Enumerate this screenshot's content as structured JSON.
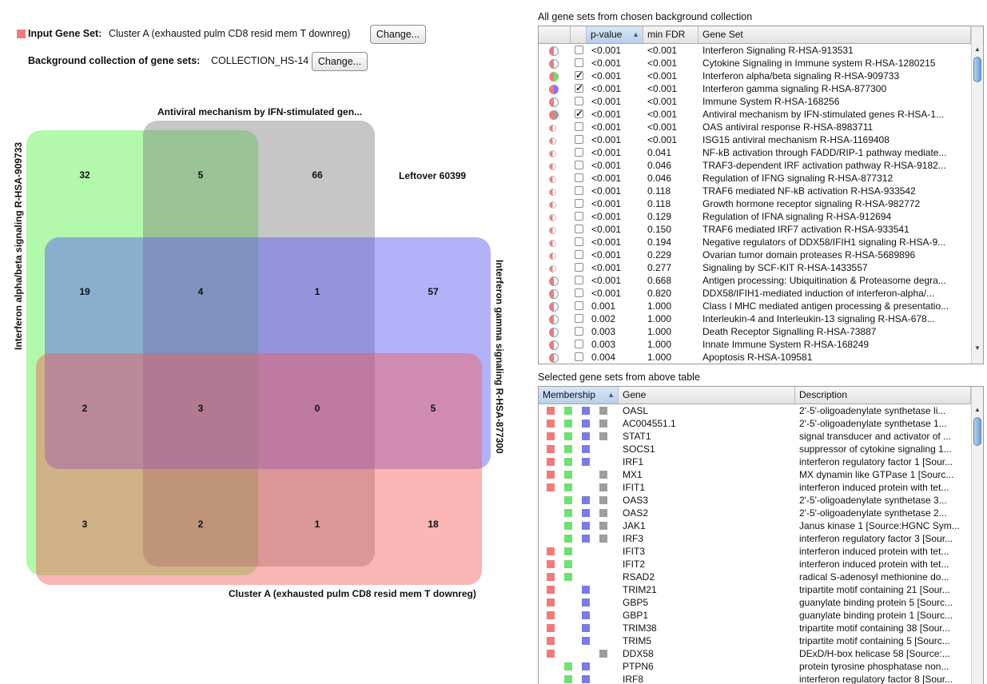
{
  "input": {
    "label": "Input Gene Set:",
    "value": "Cluster A (exhausted pulm CD8 resid mem T downreg)",
    "change_label": "Change..."
  },
  "background": {
    "label": "Background collection of gene sets:",
    "value": "COLLECTION_HS-14",
    "change_label": "Change..."
  },
  "colors": {
    "input_red": "#f07b7b",
    "green": "#70e070",
    "blue": "#7a7ae8",
    "grey": "#9e9e9e",
    "accent": "#5d87bd"
  },
  "venn": {
    "set_top_label": "Antiviral mechanism by IFN-stimulated gen...",
    "set_left_label": "Interferon alpha/beta signaling R-HSA-909733",
    "set_right_label": "Interferon gamma signaling R-HSA-877300",
    "set_bottom_label": "Cluster A (exhausted pulm CD8 resid mem T downreg)",
    "leftover": "Leftover 60399",
    "counts": [
      [
        "32",
        "5",
        "66"
      ],
      [
        "19",
        "4",
        "1",
        "57"
      ],
      [
        "2",
        "3",
        "0",
        "5"
      ],
      [
        "3",
        "2",
        "1",
        "18"
      ]
    ]
  },
  "gene_sets_panel": {
    "title": "All gene sets from chosen background collection",
    "headers": {
      "pvalue": "p-value",
      "fdr": "min FDR",
      "geneset": "Gene Set"
    },
    "rows": [
      {
        "dot": "red-white",
        "checked": false,
        "p": "<0.001",
        "fdr": "<0.001",
        "name": "Interferon Signaling R-HSA-913531"
      },
      {
        "dot": "red-white",
        "checked": false,
        "p": "<0.001",
        "fdr": "<0.001",
        "name": "Cytokine Signaling in Immune system R-HSA-1280215"
      },
      {
        "dot": "red-green",
        "checked": true,
        "p": "<0.001",
        "fdr": "<0.001",
        "name": "Interferon alpha/beta signaling R-HSA-909733"
      },
      {
        "dot": "red-blue",
        "checked": true,
        "p": "<0.001",
        "fdr": "<0.001",
        "name": "Interferon gamma signaling R-HSA-877300"
      },
      {
        "dot": "red-white",
        "checked": false,
        "p": "<0.001",
        "fdr": "<0.001",
        "name": "Immune System R-HSA-168256"
      },
      {
        "dot": "red-grey",
        "checked": true,
        "p": "<0.001",
        "fdr": "<0.001",
        "name": "Antiviral mechanism by IFN-stimulated genes R-HSA-1..."
      },
      {
        "dot": "red-small",
        "checked": false,
        "p": "<0.001",
        "fdr": "<0.001",
        "name": "OAS antiviral response R-HSA-8983711"
      },
      {
        "dot": "red-small",
        "checked": false,
        "p": "<0.001",
        "fdr": "<0.001",
        "name": "ISG15 antiviral mechanism R-HSA-1169408"
      },
      {
        "dot": "red-small",
        "checked": false,
        "p": "<0.001",
        "fdr": "0.041",
        "name": "NF-kB activation through FADD/RIP-1 pathway mediate..."
      },
      {
        "dot": "red-small",
        "checked": false,
        "p": "<0.001",
        "fdr": "0.046",
        "name": "TRAF3-dependent IRF activation pathway R-HSA-9182..."
      },
      {
        "dot": "red-small",
        "checked": false,
        "p": "<0.001",
        "fdr": "0.046",
        "name": "Regulation of IFNG signaling R-HSA-877312"
      },
      {
        "dot": "red-small",
        "checked": false,
        "p": "<0.001",
        "fdr": "0.118",
        "name": "TRAF6 mediated NF-kB activation R-HSA-933542"
      },
      {
        "dot": "red-small",
        "checked": false,
        "p": "<0.001",
        "fdr": "0.118",
        "name": "Growth hormone receptor signaling R-HSA-982772"
      },
      {
        "dot": "red-small",
        "checked": false,
        "p": "<0.001",
        "fdr": "0.129",
        "name": "Regulation of IFNA signaling R-HSA-912694"
      },
      {
        "dot": "red-small",
        "checked": false,
        "p": "<0.001",
        "fdr": "0.150",
        "name": "TRAF6 mediated IRF7 activation R-HSA-933541"
      },
      {
        "dot": "red-small",
        "checked": false,
        "p": "<0.001",
        "fdr": "0.194",
        "name": "Negative regulators of DDX58/IFIH1 signaling R-HSA-9..."
      },
      {
        "dot": "red-small",
        "checked": false,
        "p": "<0.001",
        "fdr": "0.229",
        "name": "Ovarian tumor domain proteases R-HSA-5689896"
      },
      {
        "dot": "red-small",
        "checked": false,
        "p": "<0.001",
        "fdr": "0.277",
        "name": "Signaling by SCF-KIT R-HSA-1433557"
      },
      {
        "dot": "red-white",
        "checked": false,
        "p": "<0.001",
        "fdr": "0.668",
        "name": "Antigen processing: Ubiquitination & Proteasome degra..."
      },
      {
        "dot": "red-white",
        "checked": false,
        "p": "<0.001",
        "fdr": "0.820",
        "name": "DDX58/IFIH1-mediated induction of interferon-alpha/..."
      },
      {
        "dot": "red-white",
        "checked": false,
        "p": "0.001",
        "fdr": "1.000",
        "name": "Class I MHC mediated antigen processing & presentatio..."
      },
      {
        "dot": "red-white",
        "checked": false,
        "p": "0.002",
        "fdr": "1.000",
        "name": "Interleukin-4 and Interleukin-13 signaling R-HSA-678..."
      },
      {
        "dot": "red-white",
        "checked": false,
        "p": "0.003",
        "fdr": "1.000",
        "name": "Death Receptor Signalling R-HSA-73887"
      },
      {
        "dot": "red-white",
        "checked": false,
        "p": "0.003",
        "fdr": "1.000",
        "name": "Innate Immune System R-HSA-168249"
      },
      {
        "dot": "red-white",
        "checked": false,
        "p": "0.004",
        "fdr": "1.000",
        "name": "Apoptosis R-HSA-109581"
      }
    ]
  },
  "selected_panel": {
    "title": "Selected gene sets from above table",
    "headers": {
      "membership": "Membership",
      "gene": "Gene",
      "description": "Description"
    },
    "rows": [
      {
        "m": [
          1,
          1,
          1,
          1
        ],
        "gene": "OASL",
        "desc": "2'-5'-oligoadenylate synthetase li..."
      },
      {
        "m": [
          1,
          1,
          1,
          1
        ],
        "gene": "AC004551.1",
        "desc": "2'-5'-oligoadenylate synthetase 1..."
      },
      {
        "m": [
          1,
          1,
          1,
          1
        ],
        "gene": "STAT1",
        "desc": "signal transducer and activator of ..."
      },
      {
        "m": [
          1,
          1,
          1,
          0
        ],
        "gene": "SOCS1",
        "desc": "suppressor of cytokine signaling 1..."
      },
      {
        "m": [
          1,
          1,
          1,
          0
        ],
        "gene": "IRF1",
        "desc": "interferon regulatory factor 1 [Sour..."
      },
      {
        "m": [
          1,
          1,
          0,
          1
        ],
        "gene": "MX1",
        "desc": "MX dynamin like GTPase 1 [Sourc..."
      },
      {
        "m": [
          1,
          1,
          0,
          1
        ],
        "gene": "IFIT1",
        "desc": "interferon induced protein with tet..."
      },
      {
        "m": [
          0,
          1,
          1,
          1
        ],
        "gene": "OAS3",
        "desc": "2'-5'-oligoadenylate synthetase 3..."
      },
      {
        "m": [
          0,
          1,
          1,
          1
        ],
        "gene": "OAS2",
        "desc": "2'-5'-oligoadenylate synthetase 2..."
      },
      {
        "m": [
          0,
          1,
          1,
          1
        ],
        "gene": "JAK1",
        "desc": "Janus kinase 1 [Source:HGNC Sym..."
      },
      {
        "m": [
          0,
          1,
          1,
          1
        ],
        "gene": "IRF3",
        "desc": "interferon regulatory factor 3 [Sour..."
      },
      {
        "m": [
          1,
          1,
          0,
          0
        ],
        "gene": "IFIT3",
        "desc": "interferon induced protein with tet..."
      },
      {
        "m": [
          1,
          1,
          0,
          0
        ],
        "gene": "IFIT2",
        "desc": "interferon induced protein with tet..."
      },
      {
        "m": [
          1,
          1,
          0,
          0
        ],
        "gene": "RSAD2",
        "desc": "radical S-adenosyl methionine do..."
      },
      {
        "m": [
          1,
          0,
          1,
          0
        ],
        "gene": "TRIM21",
        "desc": "tripartite motif containing 21 [Sour..."
      },
      {
        "m": [
          1,
          0,
          1,
          0
        ],
        "gene": "GBP5",
        "desc": "guanylate binding protein 5 [Sourc..."
      },
      {
        "m": [
          1,
          0,
          1,
          0
        ],
        "gene": "GBP1",
        "desc": "guanylate binding protein 1 [Sourc..."
      },
      {
        "m": [
          1,
          0,
          1,
          0
        ],
        "gene": "TRIM38",
        "desc": "tripartite motif containing 38 [Sour..."
      },
      {
        "m": [
          1,
          0,
          1,
          0
        ],
        "gene": "TRIM5",
        "desc": "tripartite motif containing 5 [Sourc..."
      },
      {
        "m": [
          1,
          0,
          0,
          1
        ],
        "gene": "DDX58",
        "desc": "DExD/H-box helicase 58 [Source:..."
      },
      {
        "m": [
          0,
          1,
          1,
          0
        ],
        "gene": "PTPN6",
        "desc": "protein tyrosine phosphatase non..."
      },
      {
        "m": [
          0,
          1,
          1,
          0
        ],
        "gene": "IRF8",
        "desc": "interferon regulatory factor 8 [Sour..."
      }
    ]
  }
}
